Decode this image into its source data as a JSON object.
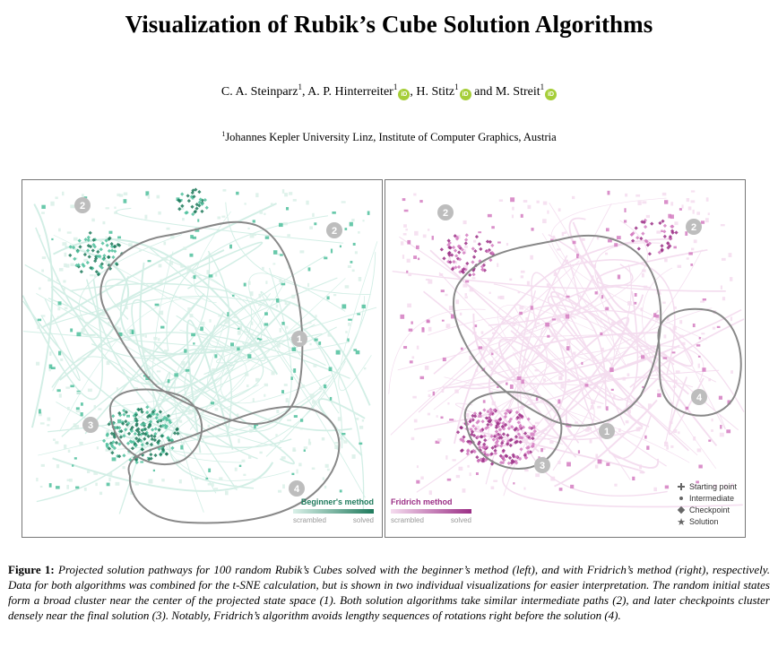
{
  "title": "Visualization of Rubik’s Cube Solution Algorithms",
  "authors": [
    {
      "name": "C. A. Steinparz",
      "sup": "1",
      "orcid": false,
      "sep": ", "
    },
    {
      "name": "A. P. Hinterreiter",
      "sup": "1",
      "orcid": true,
      "sep": ", "
    },
    {
      "name": "H. Stitz",
      "sup": "1",
      "orcid": true,
      "sep": " and "
    },
    {
      "name": "M. Streit",
      "sup": "1",
      "orcid": true,
      "sep": ""
    }
  ],
  "orcid_label": "iD",
  "affiliation": {
    "sup": "1",
    "text": "Johannes Kepler University Linz, Institute of Computer Graphics, Austria"
  },
  "figure": {
    "left_panel": {
      "legend_title": "Beginner's method",
      "scale_start": "scrambled",
      "scale_end": "solved",
      "color_light": "#d9f0e8",
      "color_dark": "#1f7a5c",
      "color_mid": "#4fbf9c",
      "region_labels": [
        "2",
        "2",
        "1",
        "3",
        "4"
      ]
    },
    "right_panel": {
      "legend_title": "Fridrich method",
      "scale_start": "scrambled",
      "scale_end": "solved",
      "color_light": "#f5dcef",
      "color_dark": "#9b2f86",
      "color_mid": "#d47cc1",
      "region_labels": [
        "2",
        "2",
        "1",
        "3",
        "4"
      ]
    },
    "shape_legend": [
      {
        "icon": "plus",
        "label": "Starting point"
      },
      {
        "icon": "dot",
        "label": "Intermediate"
      },
      {
        "icon": "diamond",
        "label": "Checkpoint"
      },
      {
        "icon": "star",
        "label": "Solution"
      }
    ]
  },
  "caption": {
    "label": "Figure 1:",
    "text": "Projected solution pathways for 100 random Rubik’s Cubes solved with the beginner’s method (left), and with Fridrich’s method (right), respectively. Data for both algorithms was combined for the t-SNE calculation, but is shown in two individual visualizations for easier interpretation. The random initial states form a broad cluster near the center of the projected state space (1). Both solution algorithms take similar intermediate paths (2), and later checkpoints cluster densely near the final solution (3). Notably, Fridrich’s algorithm avoids lengthy sequences of rotations right before the solution (4)."
  }
}
